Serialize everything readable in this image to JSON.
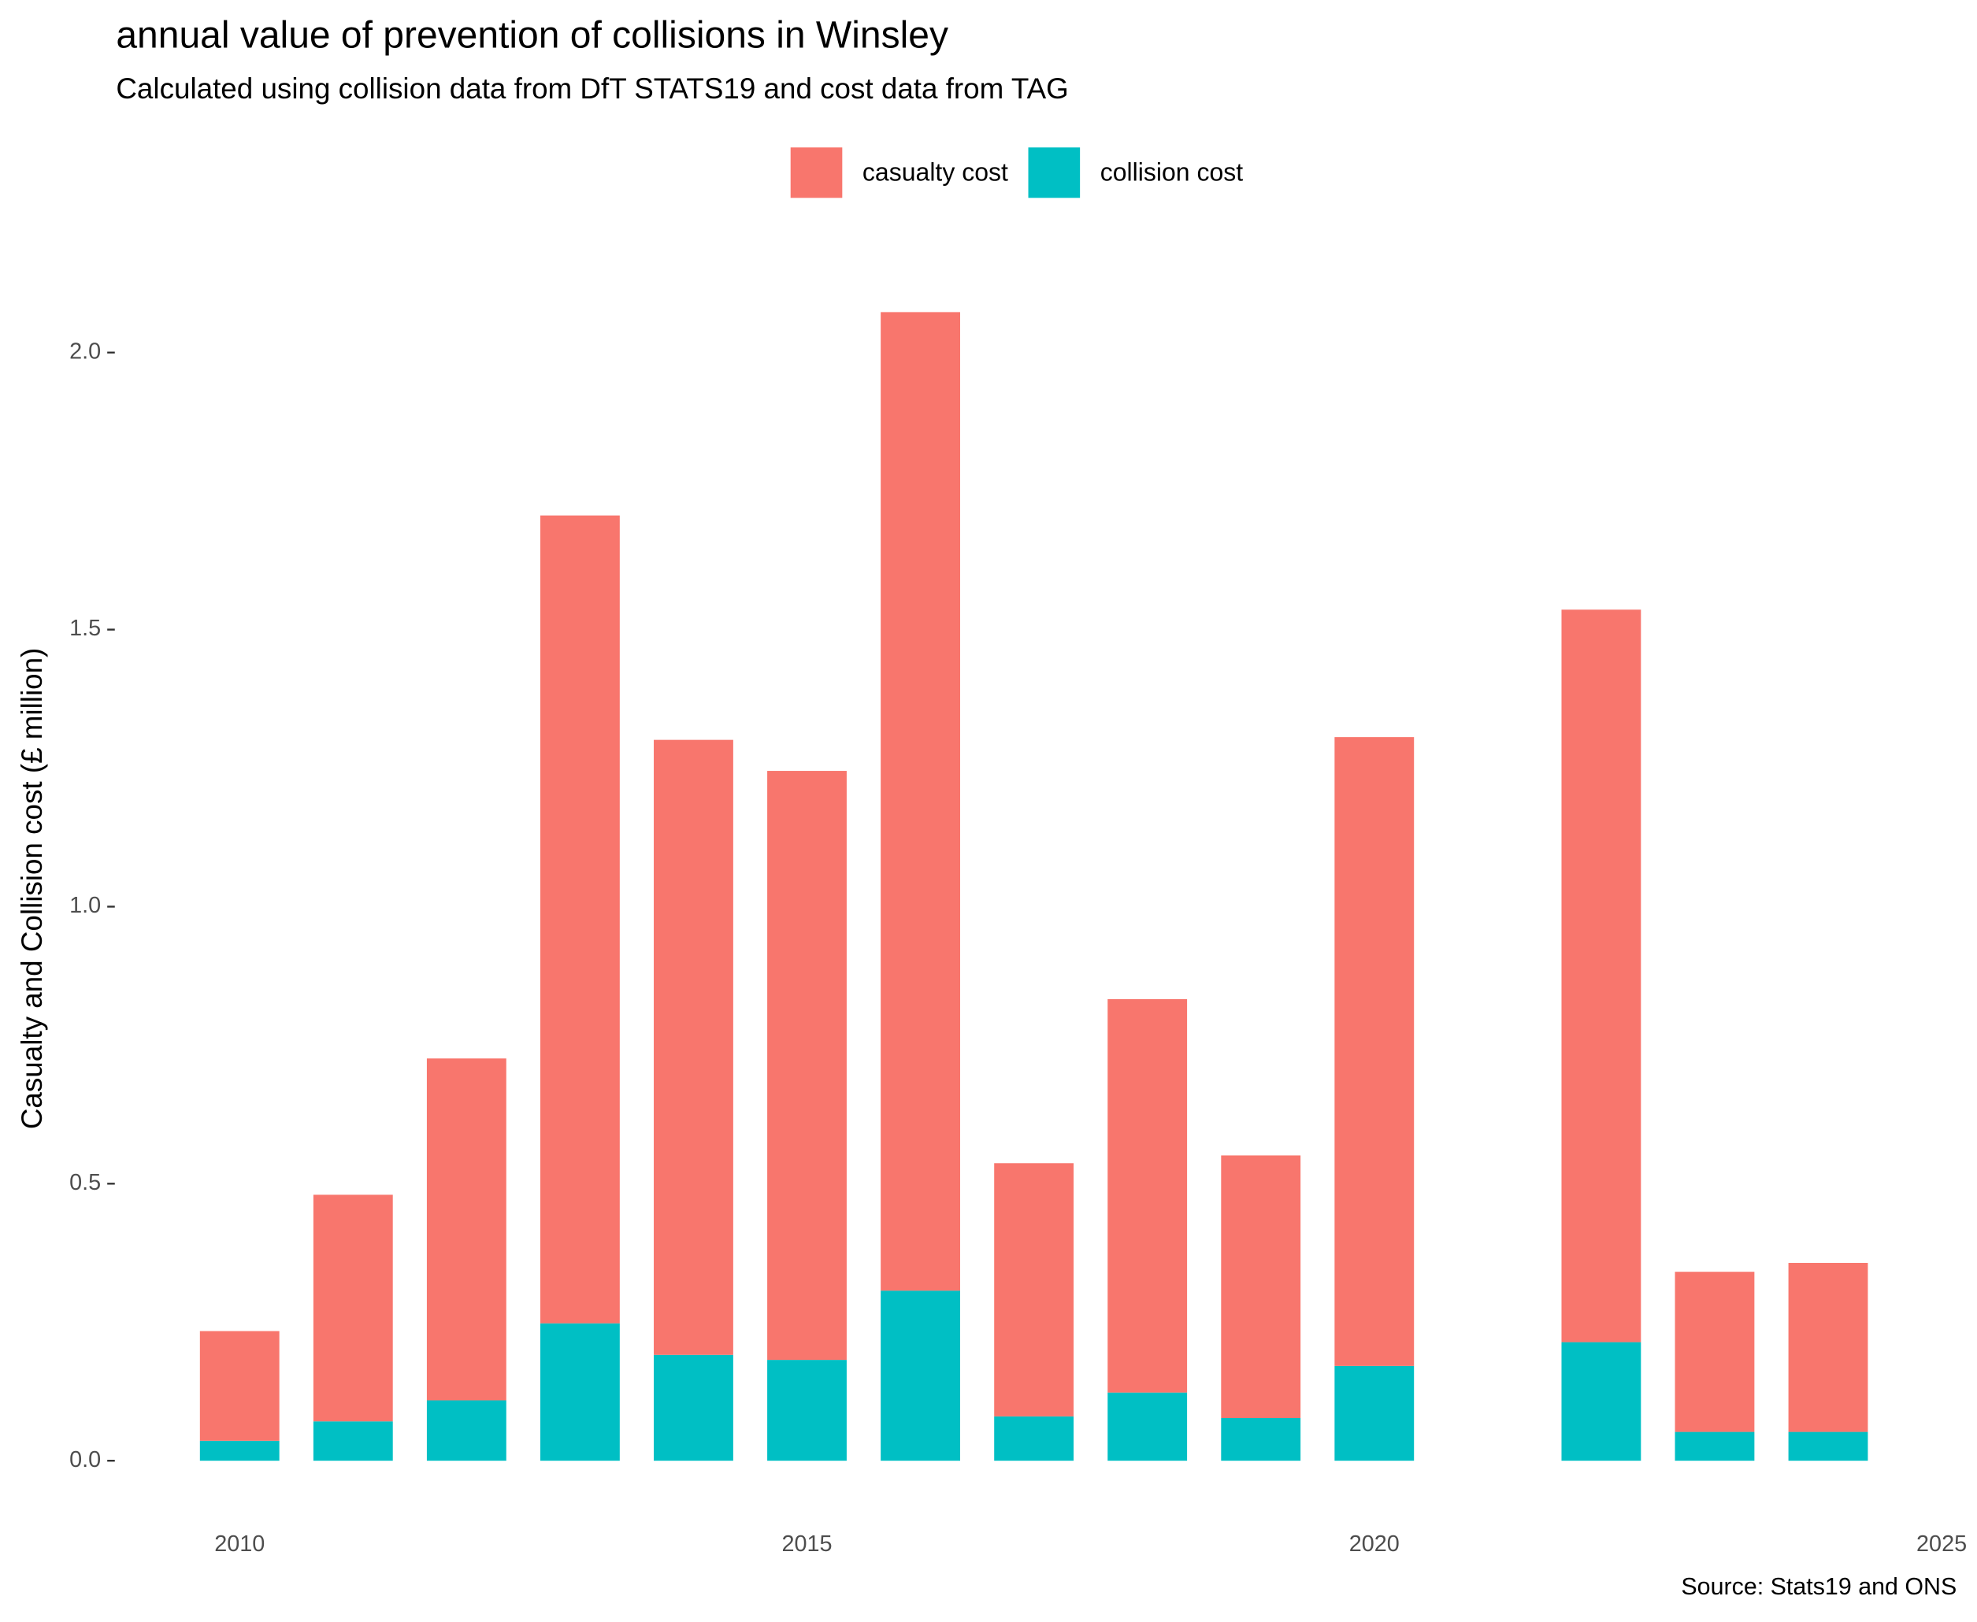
{
  "chart_data": {
    "type": "stacked-bar",
    "title": "annual value of prevention of collisions in Winsley",
    "subtitle": "Calculated using collision data from DfT STATS19 and cost data from TAG",
    "y_label": "Casualty and Collision cost (£ million)",
    "caption": "Source: Stats19 and ONS",
    "x": [
      2010,
      2011,
      2012,
      2013,
      2014,
      2015,
      2016,
      2017,
      2018,
      2019,
      2020,
      2021,
      2022,
      2023,
      2024
    ],
    "series": [
      {
        "name": "casualty cost",
        "color": "#f8766d",
        "values": [
          0.198,
          0.409,
          0.617,
          1.458,
          1.11,
          1.063,
          1.766,
          0.457,
          0.71,
          0.474,
          1.135,
          null,
          1.322,
          0.289,
          0.305
        ]
      },
      {
        "name": "collision cost",
        "color": "#00bfc4",
        "values": [
          0.036,
          0.071,
          0.109,
          0.248,
          0.191,
          0.182,
          0.307,
          0.08,
          0.123,
          0.077,
          0.171,
          null,
          0.214,
          0.052,
          0.052
        ]
      }
    ],
    "stack_order": "bottom-up reversed",
    "xlim": [
      2009,
      2025.1
    ],
    "xticks": [
      2010,
      2015,
      2020,
      2025
    ],
    "ylim": [
      -0.1,
      2.17
    ],
    "yticks": [
      {
        "value": 0,
        "label": "0.0"
      },
      0.5,
      {
        "value": 1,
        "label": "1.0"
      },
      1.5,
      {
        "value": 2,
        "label": "2.0"
      }
    ],
    "grid": false,
    "legend": "top"
  }
}
